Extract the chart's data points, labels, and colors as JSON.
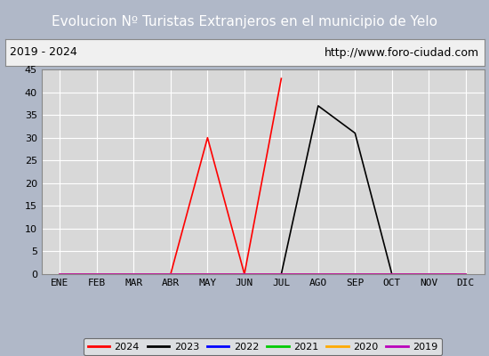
{
  "title": "Evolucion Nº Turistas Extranjeros en el municipio de Yelo",
  "subtitle_left": "2019 - 2024",
  "subtitle_right": "http://www.foro-ciudad.com",
  "title_bg_color": "#4a86c8",
  "title_text_color": "#ffffff",
  "subtitle_bg_color": "#f0f0f0",
  "subtitle_text_color": "#000000",
  "outer_bg_color": "#b0b8c8",
  "plot_bg_color": "#d8d8d8",
  "grid_color": "#ffffff",
  "months": [
    "ENE",
    "FEB",
    "MAR",
    "ABR",
    "MAY",
    "JUN",
    "JUL",
    "AGO",
    "SEP",
    "OCT",
    "NOV",
    "DIC"
  ],
  "ylim": [
    0,
    45
  ],
  "yticks": [
    0,
    5,
    10,
    15,
    20,
    25,
    30,
    35,
    40,
    45
  ],
  "series": {
    "2024": {
      "color": "#ff0000",
      "data": [
        0,
        0,
        0,
        0,
        30,
        0,
        43,
        null,
        null,
        null,
        null,
        null
      ]
    },
    "2023": {
      "color": "#000000",
      "data": [
        0,
        0,
        0,
        0,
        0,
        0,
        0,
        37,
        31,
        0,
        null,
        null
      ]
    },
    "2022": {
      "color": "#0000ff",
      "data": [
        0,
        0,
        0,
        0,
        0,
        0,
        0,
        0,
        0,
        0,
        0,
        0
      ]
    },
    "2021": {
      "color": "#00cc00",
      "data": [
        0,
        0,
        0,
        0,
        0,
        0,
        0,
        0,
        0,
        0,
        0,
        0
      ]
    },
    "2020": {
      "color": "#ffaa00",
      "data": [
        0,
        0,
        0,
        0,
        0,
        0,
        0,
        0,
        0,
        0,
        0,
        0
      ]
    },
    "2019": {
      "color": "#bb00bb",
      "data": [
        0,
        0,
        0,
        0,
        0,
        0,
        0,
        0,
        0,
        0,
        0,
        0
      ]
    }
  },
  "legend_order": [
    "2024",
    "2023",
    "2022",
    "2021",
    "2020",
    "2019"
  ],
  "title_fontsize": 11,
  "subtitle_fontsize": 9,
  "tick_fontsize": 8,
  "legend_fontsize": 8
}
